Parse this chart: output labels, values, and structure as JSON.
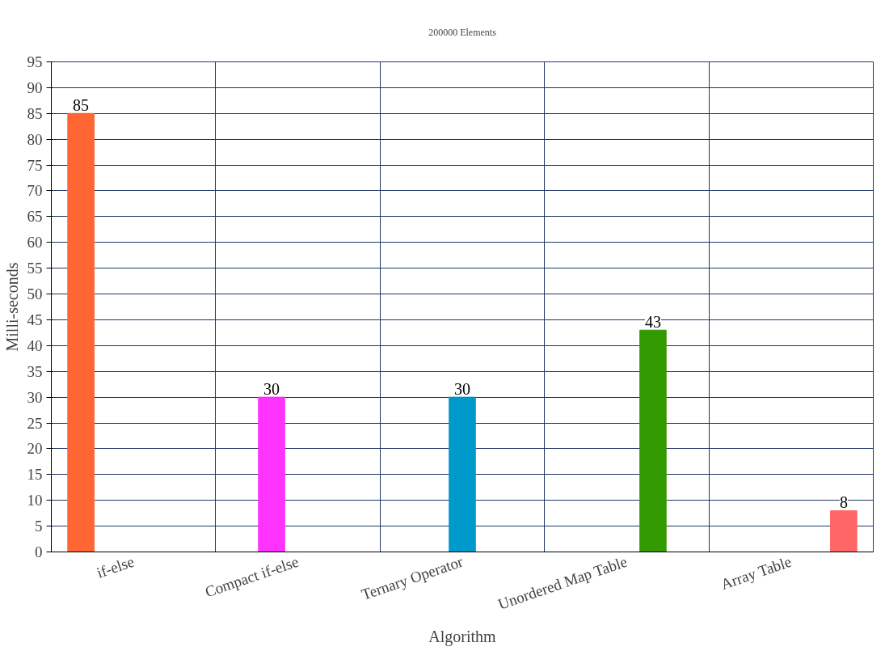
{
  "chart_data": {
    "type": "bar",
    "title": "200000 Elements",
    "xlabel": "Algorithm",
    "ylabel": "Milli-seconds",
    "categories": [
      "if-else",
      "Compact if-else",
      "Ternary Operator",
      "Unordered Map Table",
      "Array Table"
    ],
    "series": [
      {
        "color": "#ff6633",
        "values": [
          85,
          null,
          null,
          null,
          null
        ]
      },
      {
        "color": "#ff33ff",
        "values": [
          null,
          30,
          null,
          null,
          null
        ]
      },
      {
        "color": "#0099cc",
        "values": [
          null,
          null,
          30,
          null,
          null
        ]
      },
      {
        "color": "#339900",
        "values": [
          null,
          null,
          null,
          43,
          null
        ]
      },
      {
        "color": "#ff6666",
        "values": [
          null,
          null,
          null,
          null,
          8
        ]
      }
    ],
    "ylim": [
      0,
      95
    ],
    "yticks": [
      0,
      5,
      10,
      15,
      20,
      25,
      30,
      35,
      40,
      45,
      50,
      55,
      60,
      65,
      70,
      75,
      80,
      85,
      90,
      95
    ],
    "grid": true,
    "data_labels": true
  }
}
